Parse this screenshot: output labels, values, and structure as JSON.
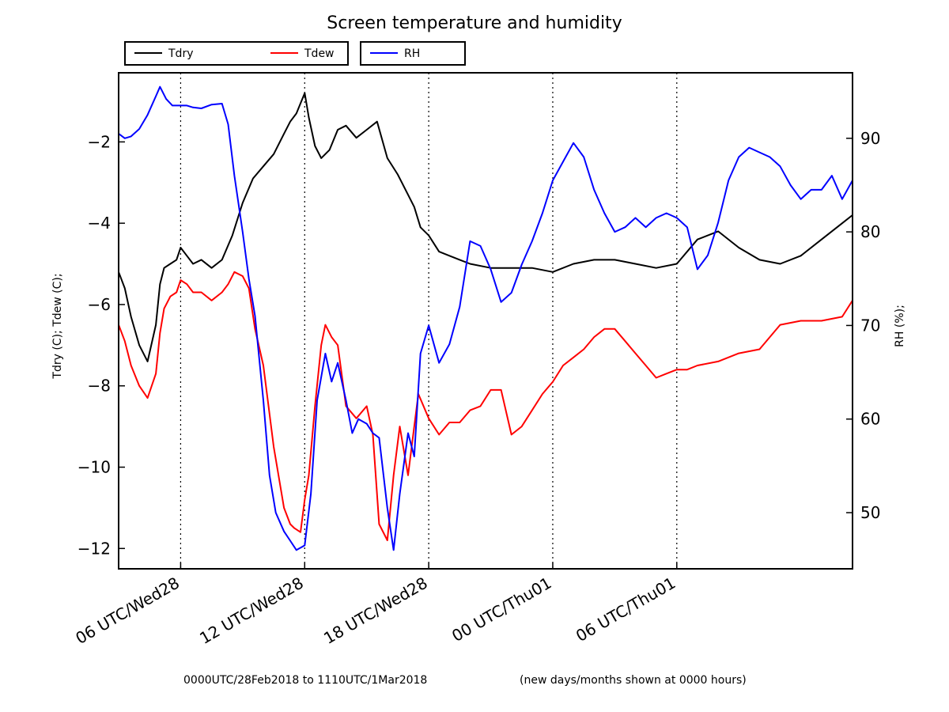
{
  "chart_data": {
    "type": "line",
    "title": "Screen temperature and humidity",
    "ylabel_left": "Tdry  (C); Tdew  (C);",
    "ylabel_right": "RH  (%);",
    "footer_left": "0000UTC/28Feb2018 to 1110UTC/1Mar2018",
    "footer_right": "(new days/months shown at 0000 hours)",
    "x_range_hours": [
      3,
      38.5
    ],
    "y_left_range": [
      -12.5,
      -0.3
    ],
    "y_right_range": [
      44,
      97
    ],
    "y_left_ticks": [
      -12,
      -10,
      -8,
      -6,
      -4,
      -2
    ],
    "y_left_tick_labels": [
      "−12",
      "−10",
      "−8",
      "−6",
      "−4",
      "−2"
    ],
    "y_right_ticks": [
      50,
      60,
      70,
      80,
      90
    ],
    "y_right_tick_labels": [
      "50",
      "60",
      "70",
      "80",
      "90"
    ],
    "x_ticks": [
      {
        "hour": 6,
        "label": "06 UTC/Wed28"
      },
      {
        "hour": 12,
        "label": "12 UTC/Wed28"
      },
      {
        "hour": 18,
        "label": "18 UTC/Wed28"
      },
      {
        "hour": 24,
        "label": "00 UTC/Thu01"
      },
      {
        "hour": 30,
        "label": "06 UTC/Thu01"
      }
    ],
    "legend": [
      {
        "name": "Tdry",
        "color": "#000000"
      },
      {
        "name": "Tdew",
        "color": "#ff0000"
      },
      {
        "name": "RH",
        "color": "#0000ff"
      }
    ],
    "series": [
      {
        "name": "Tdry",
        "axis": "left",
        "color": "#000000",
        "x": [
          3.0,
          3.3,
          3.6,
          4.0,
          4.4,
          4.8,
          5.0,
          5.2,
          5.5,
          5.8,
          6.0,
          6.3,
          6.6,
          7.0,
          7.5,
          8.0,
          8.5,
          9.0,
          9.5,
          10.0,
          10.5,
          11.0,
          11.3,
          11.6,
          12.0,
          12.2,
          12.5,
          12.8,
          13.2,
          13.6,
          14.0,
          14.5,
          15.0,
          15.5,
          16.0,
          16.5,
          17.0,
          17.3,
          17.6,
          18.0,
          18.5,
          19.0,
          19.5,
          20.0,
          21.0,
          22.0,
          23.0,
          24.0,
          25.0,
          26.0,
          27.0,
          28.0,
          29.0,
          30.0,
          31.0,
          32.0,
          33.0,
          34.0,
          35.0,
          36.0,
          37.0,
          38.0,
          38.5
        ],
        "y": [
          -5.2,
          -5.6,
          -6.3,
          -7.0,
          -7.4,
          -6.5,
          -5.5,
          -5.1,
          -5.0,
          -4.9,
          -4.6,
          -4.8,
          -5.0,
          -4.9,
          -5.1,
          -4.9,
          -4.3,
          -3.5,
          -2.9,
          -2.6,
          -2.3,
          -1.8,
          -1.5,
          -1.3,
          -0.8,
          -1.4,
          -2.1,
          -2.4,
          -2.2,
          -1.7,
          -1.6,
          -1.9,
          -1.7,
          -1.5,
          -2.4,
          -2.8,
          -3.3,
          -3.6,
          -4.1,
          -4.3,
          -4.7,
          -4.8,
          -4.9,
          -5.0,
          -5.1,
          -5.1,
          -5.1,
          -5.2,
          -5.0,
          -4.9,
          -4.9,
          -5.0,
          -5.1,
          -5.0,
          -4.4,
          -4.2,
          -4.6,
          -4.9,
          -5.0,
          -4.8,
          -4.4,
          -4.0,
          -3.8
        ]
      },
      {
        "name": "Tdew",
        "axis": "left",
        "color": "#ff0000",
        "x": [
          3.0,
          3.3,
          3.6,
          4.0,
          4.4,
          4.8,
          5.0,
          5.2,
          5.5,
          5.8,
          6.0,
          6.3,
          6.6,
          7.0,
          7.5,
          8.0,
          8.3,
          8.6,
          9.0,
          9.3,
          9.6,
          10.0,
          10.5,
          11.0,
          11.3,
          11.5,
          11.8,
          12.0,
          12.2,
          12.5,
          12.8,
          13.0,
          13.3,
          13.6,
          14.0,
          14.5,
          15.0,
          15.3,
          15.6,
          16.0,
          16.3,
          16.6,
          17.0,
          17.5,
          18.0,
          18.5,
          19.0,
          19.5,
          20.0,
          20.5,
          21.0,
          21.5,
          22.0,
          22.5,
          23.0,
          23.5,
          24.0,
          24.5,
          25.0,
          25.5,
          26.0,
          26.5,
          27.0,
          27.5,
          28.0,
          28.5,
          29.0,
          29.5,
          30.0,
          30.5,
          31.0,
          32.0,
          33.0,
          34.0,
          35.0,
          36.0,
          37.0,
          38.0,
          38.5
        ],
        "y": [
          -6.5,
          -6.9,
          -7.5,
          -8.0,
          -8.3,
          -7.7,
          -6.7,
          -6.1,
          -5.8,
          -5.7,
          -5.4,
          -5.5,
          -5.7,
          -5.7,
          -5.9,
          -5.7,
          -5.5,
          -5.2,
          -5.3,
          -5.6,
          -6.6,
          -7.5,
          -9.5,
          -11.0,
          -11.4,
          -11.5,
          -11.6,
          -10.8,
          -10.2,
          -8.5,
          -7.0,
          -6.5,
          -6.8,
          -7.0,
          -8.5,
          -8.8,
          -8.5,
          -9.2,
          -11.4,
          -11.8,
          -10.2,
          -9.0,
          -10.2,
          -8.2,
          -8.8,
          -9.2,
          -8.9,
          -8.9,
          -8.6,
          -8.5,
          -8.1,
          -8.1,
          -9.2,
          -9.0,
          -8.6,
          -8.2,
          -7.9,
          -7.5,
          -7.3,
          -7.1,
          -6.8,
          -6.6,
          -6.6,
          -6.9,
          -7.2,
          -7.5,
          -7.8,
          -7.7,
          -7.6,
          -7.6,
          -7.5,
          -7.4,
          -7.2,
          -7.1,
          -6.5,
          -6.4,
          -6.4,
          -6.3,
          -5.9
        ]
      },
      {
        "name": "RH",
        "axis": "right",
        "color": "#0000ff",
        "x": [
          3.0,
          3.3,
          3.6,
          4.0,
          4.4,
          4.8,
          5.0,
          5.3,
          5.6,
          6.0,
          6.3,
          6.6,
          7.0,
          7.5,
          8.0,
          8.3,
          8.6,
          9.0,
          9.3,
          9.6,
          10.0,
          10.3,
          10.6,
          11.0,
          11.3,
          11.6,
          12.0,
          12.3,
          12.6,
          13.0,
          13.3,
          13.6,
          14.0,
          14.3,
          14.6,
          15.0,
          15.3,
          15.6,
          16.0,
          16.3,
          16.6,
          17.0,
          17.3,
          17.6,
          18.0,
          18.5,
          19.0,
          19.5,
          20.0,
          20.5,
          21.0,
          21.5,
          22.0,
          22.5,
          23.0,
          23.5,
          24.0,
          24.5,
          25.0,
          25.5,
          26.0,
          26.5,
          27.0,
          27.5,
          28.0,
          28.5,
          29.0,
          29.5,
          30.0,
          30.5,
          31.0,
          31.5,
          32.0,
          32.5,
          33.0,
          33.5,
          34.0,
          34.5,
          35.0,
          35.5,
          36.0,
          36.5,
          37.0,
          37.5,
          38.0,
          38.5
        ],
        "y": [
          90.5,
          90.0,
          90.2,
          91.0,
          92.5,
          94.5,
          95.5,
          94.2,
          93.5,
          93.5,
          93.5,
          93.3,
          93.2,
          93.6,
          93.7,
          91.5,
          86.0,
          80.0,
          75.0,
          71.0,
          62.0,
          54.0,
          50.0,
          48.0,
          47.0,
          46.0,
          46.5,
          52.0,
          62.0,
          67.0,
          64.0,
          66.0,
          62.0,
          58.5,
          60.0,
          59.5,
          58.5,
          58.0,
          50.5,
          46.0,
          52.0,
          58.5,
          56.0,
          67.0,
          70.0,
          66.0,
          68.0,
          72.0,
          79.0,
          78.5,
          76.0,
          72.5,
          73.5,
          76.5,
          79.0,
          82.0,
          85.5,
          87.5,
          89.5,
          88.0,
          84.5,
          82.0,
          80.0,
          80.5,
          81.5,
          80.5,
          81.5,
          82.0,
          81.5,
          80.5,
          76.0,
          77.5,
          81.0,
          85.5,
          88.0,
          89.0,
          88.5,
          88.0,
          87.0,
          85.0,
          83.5,
          84.5,
          84.5,
          86.0,
          83.5,
          85.5
        ]
      }
    ]
  }
}
